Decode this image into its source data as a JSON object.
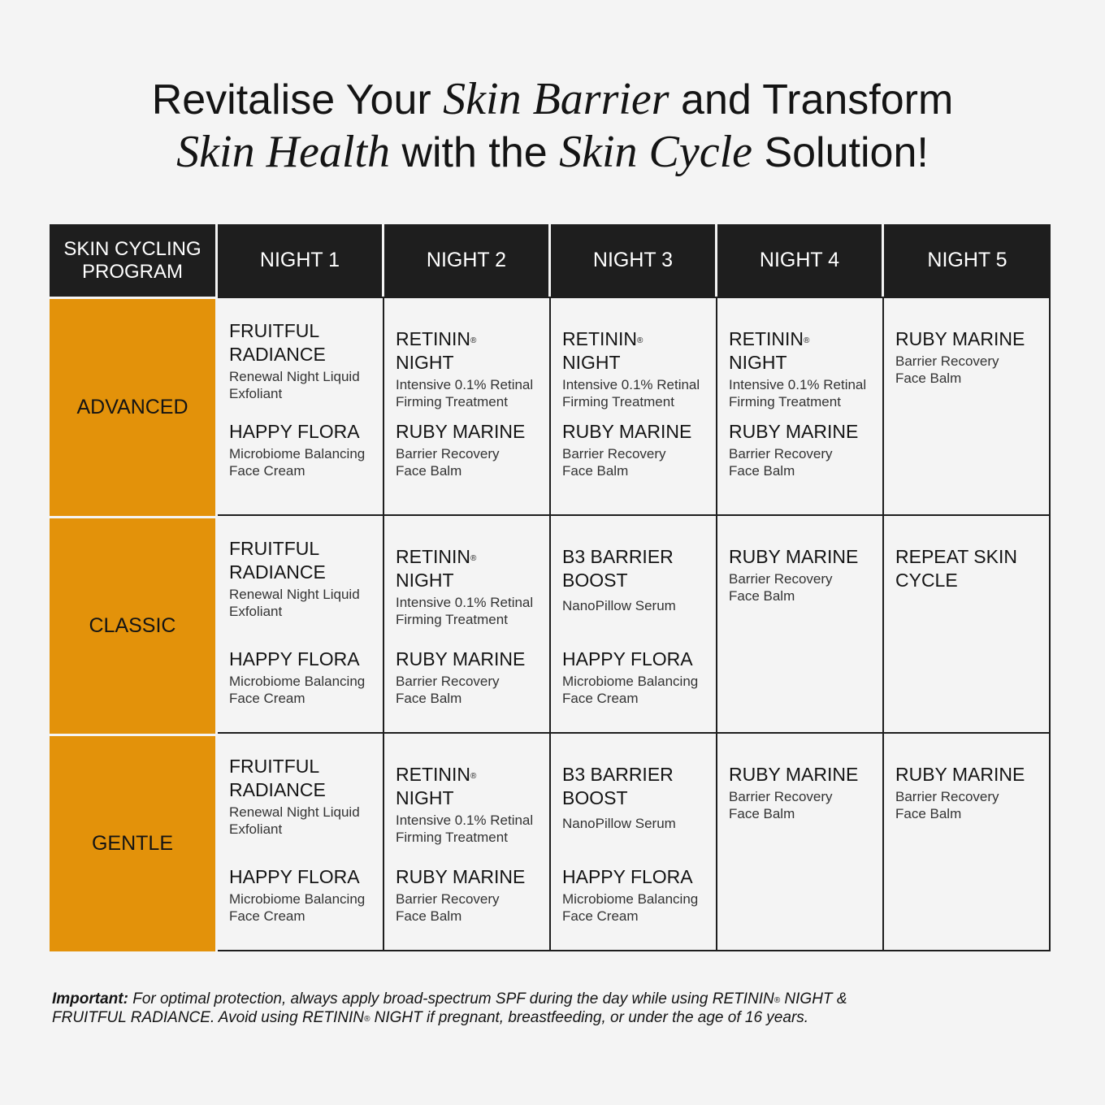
{
  "title": {
    "line1_a": "Revitalise Your ",
    "line1_em": "Skin Barrier",
    "line1_b": " and Transform",
    "line2_em1": "Skin Health",
    "line2_a": " with the ",
    "line2_em2": "Skin Cycle",
    "line2_b": " Solution!"
  },
  "table": {
    "corner_line1": "SKIN CYCLING",
    "corner_line2": "PROGRAM",
    "nights": [
      "NIGHT 1",
      "NIGHT 2",
      "NIGHT 3",
      "NIGHT 4",
      "NIGHT 5"
    ],
    "programs": [
      "ADVANCED",
      "CLASSIC",
      "GENTLE"
    ],
    "reg": "®",
    "cells": {
      "fr_name": "FRUITFUL RADIANCE",
      "fr_desc": "Renewal Night Liquid Exfoliant",
      "hf_name": "HAPPY FLORA",
      "hf_desc": "Microbiome Balancing Face Cream",
      "rn_name_a": "RETININ",
      "rn_name_b": " NIGHT",
      "rn_desc": "Intensive 0.1% Retinal Firming Treatment",
      "rm_name": "RUBY MARINE",
      "rm_desc": "Barrier Recovery Face Balm",
      "b3_name": "B3 BARRIER BOOST",
      "b3_desc": "NanoPillow Serum",
      "repeat_name": "REPEAT SKIN CYCLE"
    }
  },
  "note": {
    "label": "Important:",
    "text1": " For optimal protection, always apply broad-spectrum SPF during the day while using RETININ",
    "text2": " NIGHT &",
    "text3": "FRUITFUL RADIANCE. Avoid using RETININ",
    "text4": " NIGHT if pregnant, breastfeeding, or under the age of 16 years."
  },
  "colors": {
    "accent": "#e3920a",
    "header_bg": "#1e1e1e",
    "background": "#f4f4f4"
  }
}
